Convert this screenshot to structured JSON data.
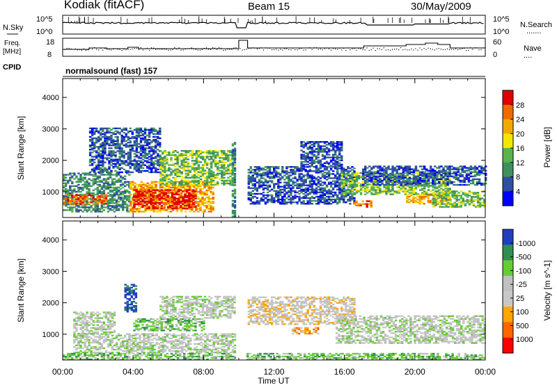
{
  "header": {
    "station": "Kodiak (fitACF)",
    "beam": "Beam 15",
    "date": "30/May/2009",
    "cpid_label": "CPID",
    "cpid_text": "normalsound (fast) 157"
  },
  "noise_panel": {
    "left_label": "N.Sky",
    "right_label": "N.Search",
    "left_ticks": [
      "10^5",
      "10^0"
    ],
    "right_ticks": [
      "10^5",
      "10^0"
    ],
    "legend_dots": "......."
  },
  "freq_panel": {
    "left_label_1": "Freq.",
    "left_label_2": "[MHz]",
    "right_label": "Nave",
    "left_ticks": [
      "18",
      "8"
    ],
    "right_ticks": [
      "60",
      "0"
    ],
    "legend_dots": "...."
  },
  "colors": {
    "power": [
      "#0000ff",
      "#2f4fa0",
      "#3f8f5f",
      "#59b34f",
      "#f5e600",
      "#f3a800",
      "#ef6a00",
      "#e00000"
    ],
    "velocity": [
      "#ff0000",
      "#ff6600",
      "#ffa500",
      "#c8c8c8",
      "#c0c0c0",
      "#66cc33",
      "#2f8f4f",
      "#2040c0"
    ]
  },
  "chart_data": [
    {
      "type": "heatmap",
      "panel": "power",
      "ylabel": "Slant Range [km]",
      "ylim": [
        180,
        4600
      ],
      "y_ticks": [
        "1000",
        "2000",
        "3000",
        "4000"
      ],
      "y_tick_values": [
        1000,
        2000,
        3000,
        4000
      ],
      "x_ticks": [
        "00:00",
        "04:00",
        "08:00",
        "12:00",
        "16:00",
        "20:00",
        "00:00"
      ],
      "xlim_hours": [
        0,
        24
      ],
      "colorbar": {
        "label": "Power [dB]",
        "ticks": [
          "4",
          "8",
          "12",
          "16",
          "20",
          "24",
          "28"
        ],
        "range": [
          0,
          30
        ]
      },
      "regions": [
        {
          "t0": 0.0,
          "t1": 3.8,
          "r0": 350,
          "r1": 1600,
          "level": 2
        },
        {
          "t0": 0.0,
          "t1": 2.5,
          "r0": 600,
          "r1": 900,
          "level": 6
        },
        {
          "t0": 1.5,
          "t1": 5.5,
          "r0": 1600,
          "r1": 3000,
          "level": 1
        },
        {
          "t0": 3.8,
          "t1": 8.5,
          "r0": 350,
          "r1": 1300,
          "level": 5
        },
        {
          "t0": 4.0,
          "t1": 7.5,
          "r0": 450,
          "r1": 1050,
          "level": 7
        },
        {
          "t0": 5.5,
          "t1": 9.8,
          "r0": 1200,
          "r1": 2300,
          "level": 3
        },
        {
          "t0": 9.6,
          "t1": 10.0,
          "r0": 200,
          "r1": 2600,
          "level": 2
        },
        {
          "t0": 10.5,
          "t1": 16.5,
          "r0": 600,
          "r1": 1800,
          "level": 1
        },
        {
          "t0": 13.5,
          "t1": 15.8,
          "r0": 1800,
          "r1": 2600,
          "level": 1
        },
        {
          "t0": 15.8,
          "t1": 22.0,
          "r0": 900,
          "r1": 1600,
          "level": 3
        },
        {
          "t0": 16.5,
          "t1": 17.5,
          "r0": 500,
          "r1": 700,
          "level": 6
        },
        {
          "t0": 19.5,
          "t1": 22.0,
          "r0": 600,
          "r1": 900,
          "level": 5
        },
        {
          "t0": 17.0,
          "t1": 24.0,
          "r0": 1200,
          "r1": 1800,
          "level": 1
        },
        {
          "t0": 21.0,
          "t1": 24.0,
          "r0": 500,
          "r1": 1000,
          "level": 3
        }
      ]
    },
    {
      "type": "heatmap",
      "panel": "velocity",
      "ylabel": "Slant Range [km]",
      "ylim": [
        180,
        4600
      ],
      "y_ticks": [
        "1000",
        "2000",
        "3000",
        "4000"
      ],
      "y_tick_values": [
        1000,
        2000,
        3000,
        4000
      ],
      "x_ticks": [
        "00:00",
        "04:00",
        "08:00",
        "12:00",
        "16:00",
        "20:00",
        "00:00"
      ],
      "xlim_hours": [
        0,
        24
      ],
      "xlabel": "Time UT",
      "colorbar": {
        "label": "Velocity [m s^-1]",
        "ticks": [
          "1000",
          "500",
          "100",
          "25",
          "-25",
          "-100",
          "-500",
          "-1000"
        ]
      },
      "regions": [
        {
          "t0": 0.6,
          "t1": 9.8,
          "r0": 400,
          "r1": 1000,
          "level": 4
        },
        {
          "t0": 0.6,
          "t1": 3.0,
          "r0": 1000,
          "r1": 1700,
          "level": 4
        },
        {
          "t0": 3.5,
          "t1": 4.2,
          "r0": 1700,
          "r1": 2600,
          "level": 7
        },
        {
          "t0": 4.0,
          "t1": 8.0,
          "r0": 1100,
          "r1": 1500,
          "level": 5
        },
        {
          "t0": 5.5,
          "t1": 9.8,
          "r0": 1500,
          "r1": 2200,
          "level": 4
        },
        {
          "t0": 10.5,
          "t1": 16.5,
          "r0": 1300,
          "r1": 2200,
          "level": 3
        },
        {
          "t0": 13.0,
          "t1": 14.5,
          "r0": 1000,
          "r1": 1200,
          "level": 2
        },
        {
          "t0": 15.5,
          "t1": 24.0,
          "r0": 700,
          "r1": 1600,
          "level": 4
        },
        {
          "t0": 0.0,
          "t1": 24.0,
          "r0": 180,
          "r1": 400,
          "level": 5
        }
      ]
    }
  ]
}
